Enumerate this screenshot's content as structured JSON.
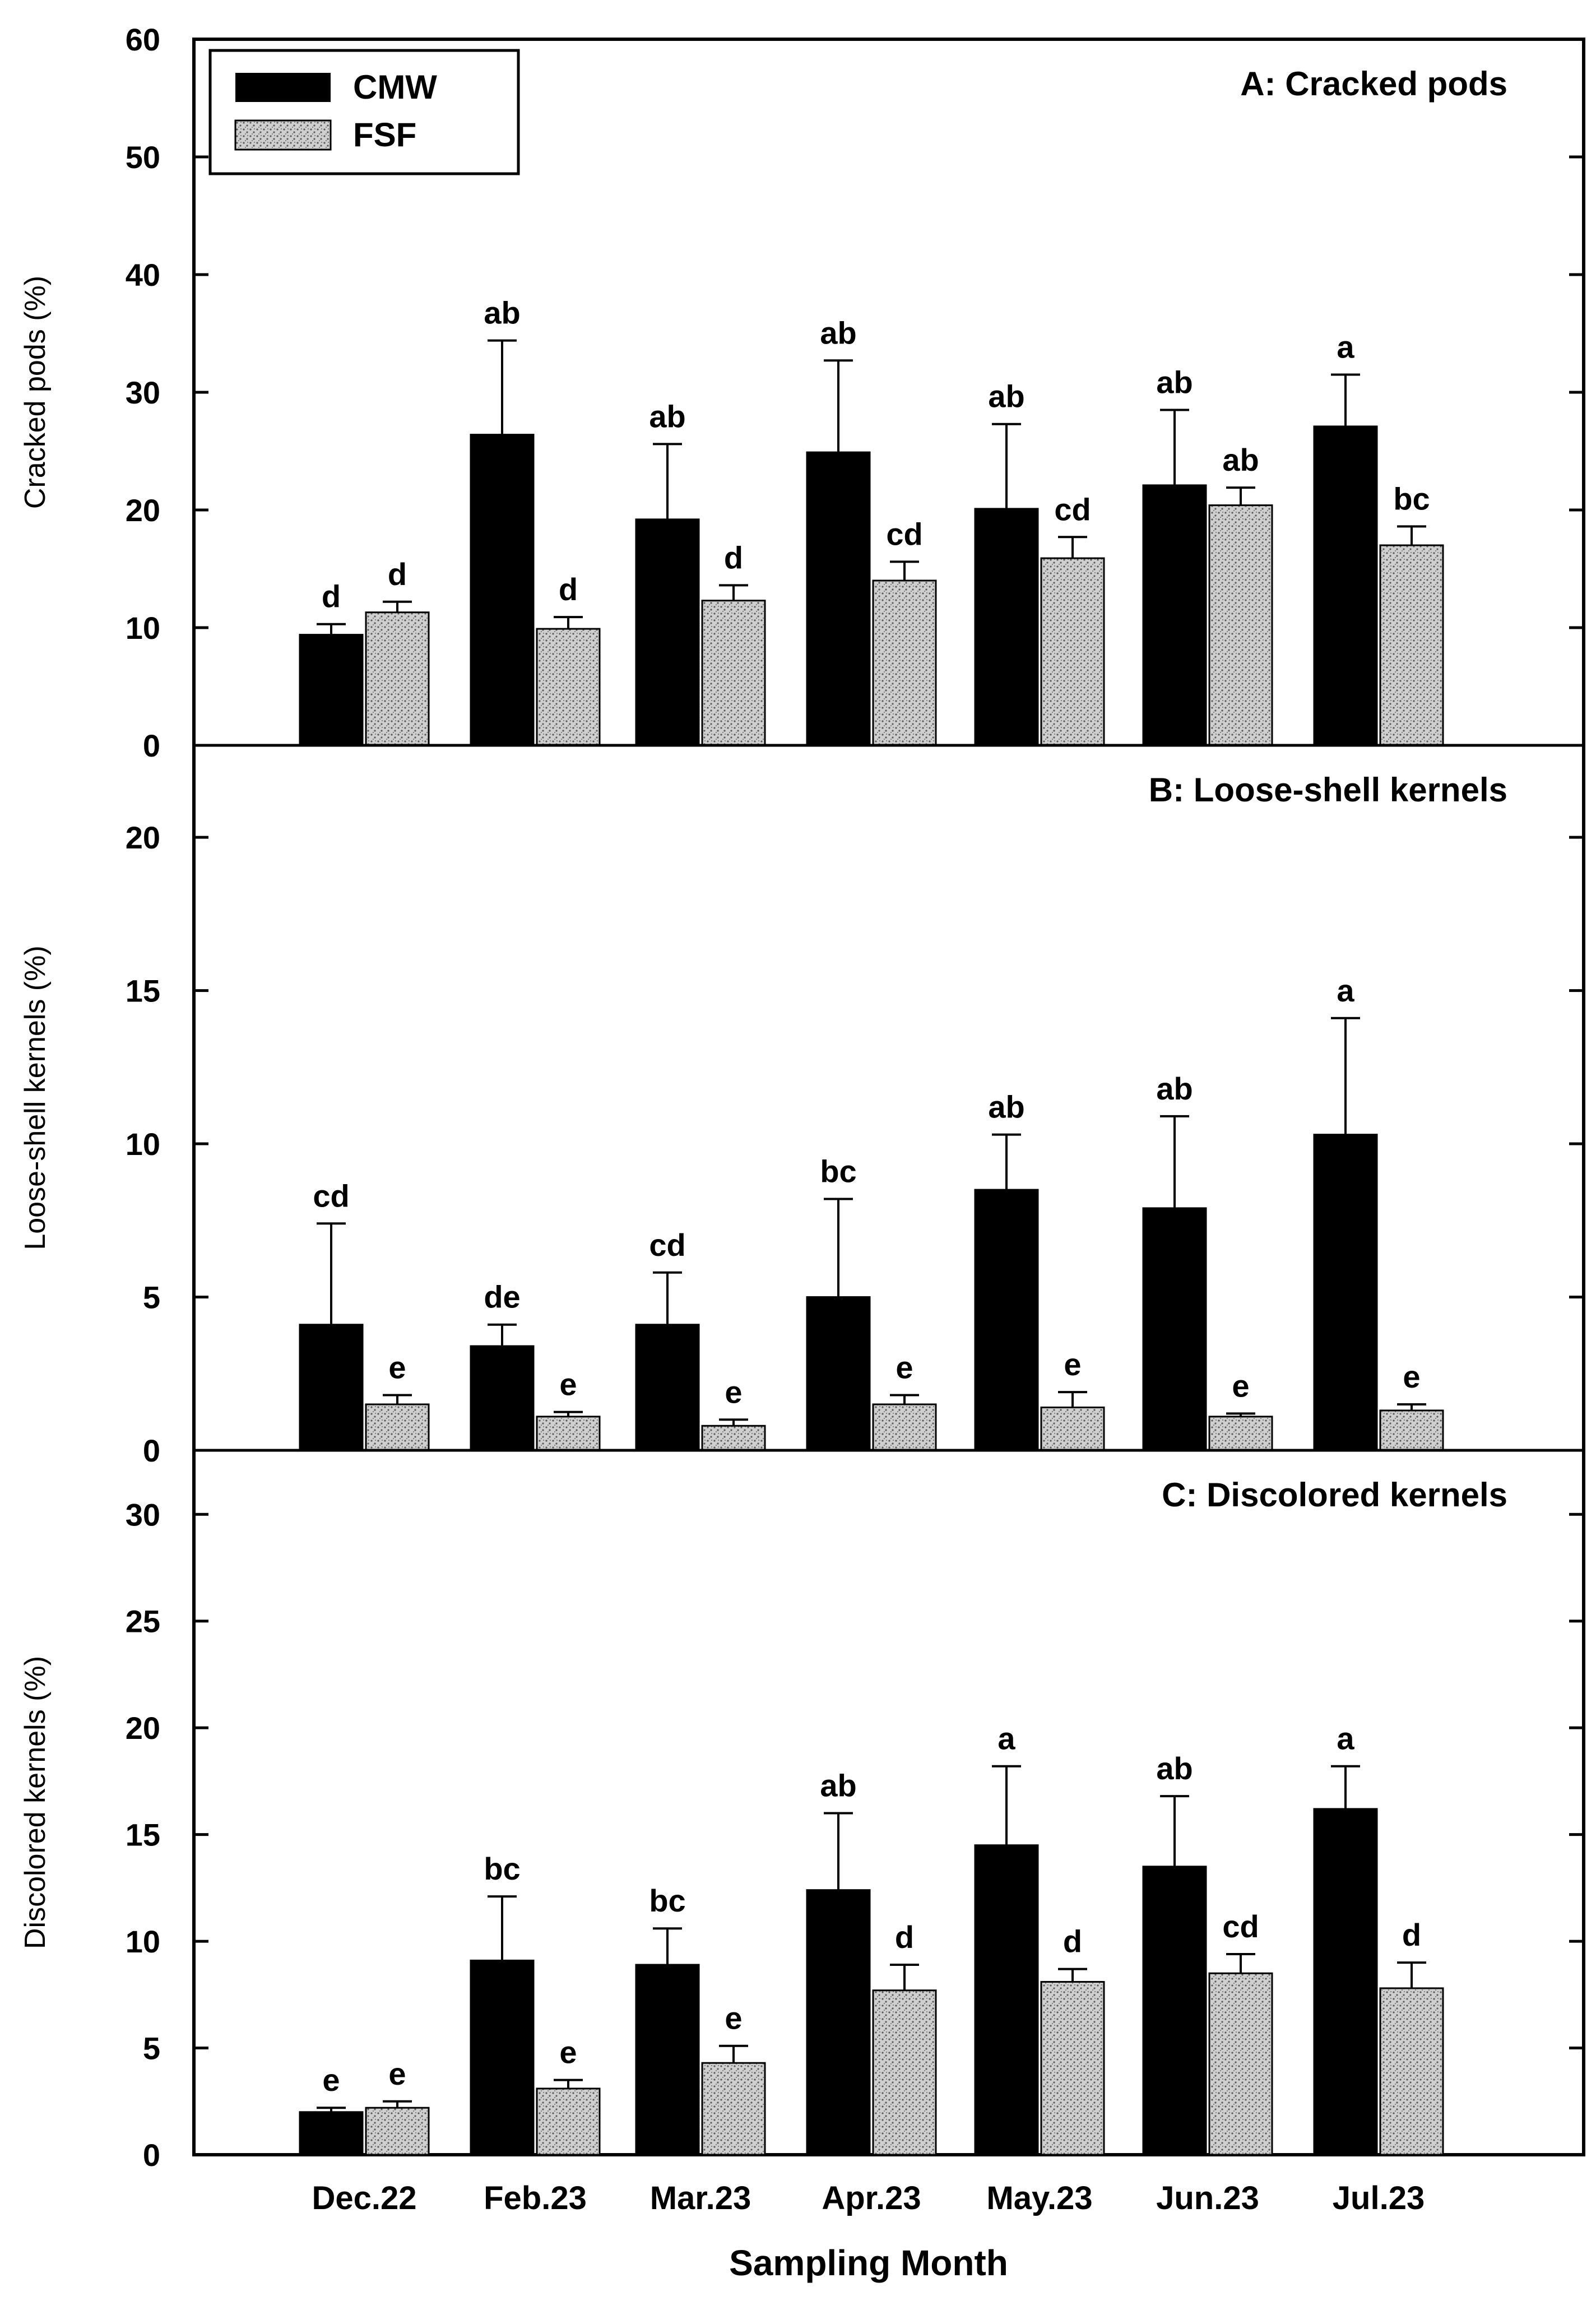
{
  "figure": {
    "xlabel": "Sampling Month",
    "legend": {
      "position": "top-left",
      "entries": [
        {
          "label": "CMW",
          "fill": "solid black"
        },
        {
          "label": "FSF",
          "fill": "gray stippled"
        }
      ]
    }
  },
  "colors": {
    "cmw": "#000000",
    "fsf_base": "#cfcfcf",
    "fsf_dots": "#5a5a5a",
    "axis": "#000000",
    "background": "#ffffff"
  },
  "chart_data": [
    {
      "type": "bar",
      "title": "A: Cracked  pods",
      "ylabel": "Cracked pods (%)",
      "ylim": [
        0,
        60
      ],
      "yticks": [
        0,
        10,
        20,
        30,
        40,
        50,
        60
      ],
      "grid": false,
      "categories": [
        "Dec.22",
        "Feb.23",
        "Mar.23",
        "Apr.23",
        "May.23",
        "Jun.23",
        "Jul.23"
      ],
      "series": [
        {
          "name": "CMW",
          "values": [
            9.4,
            26.4,
            19.2,
            24.9,
            20.1,
            22.1,
            27.1
          ],
          "errors": [
            0.9,
            8.0,
            6.4,
            7.8,
            7.2,
            6.4,
            4.4
          ],
          "letters": [
            "d",
            "ab",
            "ab",
            "ab",
            "ab",
            "ab",
            "a"
          ]
        },
        {
          "name": "FSF",
          "values": [
            11.3,
            9.9,
            12.3,
            14.0,
            15.9,
            20.4,
            17.0
          ],
          "errors": [
            0.9,
            1.0,
            1.3,
            1.6,
            1.8,
            1.5,
            1.6
          ],
          "letters": [
            "d",
            "d",
            "d",
            "cd",
            "cd",
            "ab",
            "bc"
          ]
        }
      ]
    },
    {
      "type": "bar",
      "title": "B: Loose-shell  kernels",
      "ylabel": "Loose-shell kernels (%)",
      "ylim": [
        0,
        23
      ],
      "yticks": [
        0,
        5,
        10,
        15,
        20
      ],
      "grid": false,
      "categories": [
        "Dec.22",
        "Feb.23",
        "Mar.23",
        "Apr.23",
        "May.23",
        "Jun.23",
        "Jul.23"
      ],
      "series": [
        {
          "name": "CMW",
          "values": [
            4.1,
            3.4,
            4.1,
            5.0,
            8.5,
            7.9,
            10.3
          ],
          "errors": [
            3.3,
            0.7,
            1.7,
            3.2,
            1.8,
            3.0,
            3.8
          ],
          "letters": [
            "cd",
            "de",
            "cd",
            "bc",
            "ab",
            "ab",
            "a"
          ]
        },
        {
          "name": "FSF",
          "values": [
            1.5,
            1.1,
            0.8,
            1.5,
            1.4,
            1.1,
            1.3
          ],
          "errors": [
            0.3,
            0.15,
            0.2,
            0.3,
            0.5,
            0.1,
            0.2
          ],
          "letters": [
            "e",
            "e",
            "e",
            "e",
            "e",
            "e",
            "e"
          ]
        }
      ]
    },
    {
      "type": "bar",
      "title": "C: Discolored  kernels",
      "ylabel": "Discolored kernels (%)",
      "ylim": [
        0,
        33
      ],
      "yticks": [
        0,
        5,
        10,
        15,
        20,
        25,
        30
      ],
      "grid": false,
      "categories": [
        "Dec.22",
        "Feb.23",
        "Mar.23",
        "Apr.23",
        "May.23",
        "Jun.23",
        "Jul.23"
      ],
      "series": [
        {
          "name": "CMW",
          "values": [
            2.0,
            9.1,
            8.9,
            12.4,
            14.5,
            13.5,
            16.2
          ],
          "errors": [
            0.2,
            3.0,
            1.7,
            3.6,
            3.7,
            3.3,
            2.0
          ],
          "letters": [
            "e",
            "bc",
            "bc",
            "ab",
            "a",
            "ab",
            "a"
          ]
        },
        {
          "name": "FSF",
          "values": [
            2.2,
            3.1,
            4.3,
            7.7,
            8.1,
            8.5,
            7.8
          ],
          "errors": [
            0.3,
            0.4,
            0.8,
            1.2,
            0.6,
            0.9,
            1.2
          ],
          "letters": [
            "e",
            "e",
            "e",
            "d",
            "d",
            "cd",
            "d"
          ]
        }
      ]
    }
  ]
}
